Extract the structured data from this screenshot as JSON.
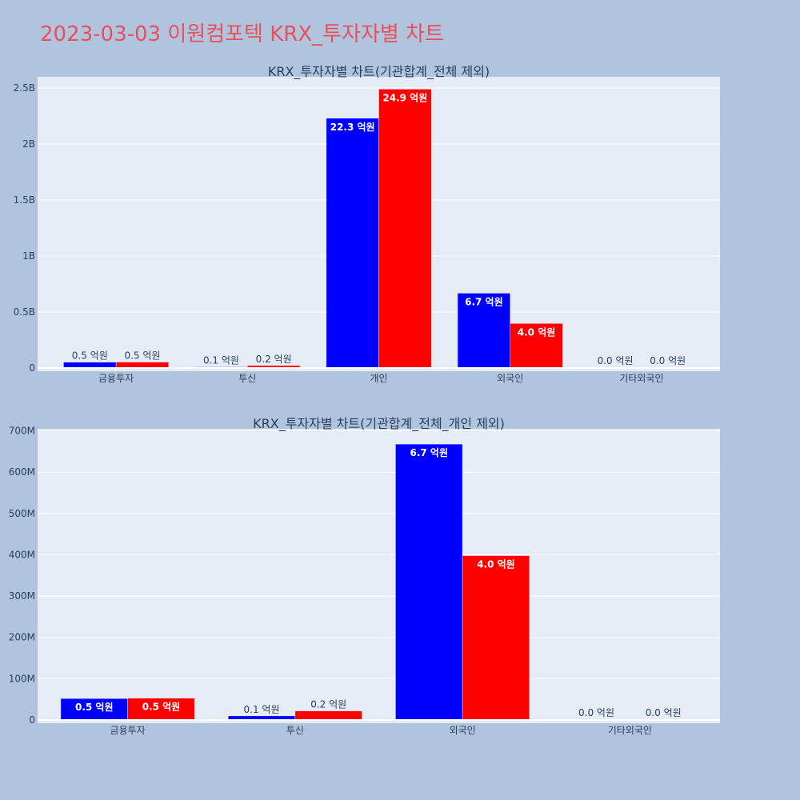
{
  "title": "2023-03-03 이원컴포텍 KRX_투자자별 차트",
  "colors": {
    "buy": "#0000ff",
    "sell": "#ff0000",
    "plot_bg": "#e5ecf6",
    "grid": "#ffffff",
    "tick_text": "#2a3f5f"
  },
  "chart_data": [
    {
      "type": "bar",
      "title": "KRX_투자자별 차트(기관합계_전체 제외)",
      "categories": [
        "금융투자",
        "투신",
        "개인",
        "외국인",
        "기타외국인"
      ],
      "series": [
        {
          "color": "#0000ff",
          "values": [
            52000000,
            10000000,
            2230000000,
            668000000,
            1000000
          ],
          "labels": [
            "0.5 억원",
            "0.1 억원",
            "22.3 억원",
            "6.7 억원",
            "0.0 억원"
          ]
        },
        {
          "color": "#ff0000",
          "values": [
            53000000,
            22000000,
            2490000000,
            398000000,
            1000000
          ],
          "labels": [
            "0.5 억원",
            "0.2 억원",
            "24.9 억원",
            "4.0 억원",
            "0.0 억원"
          ]
        }
      ],
      "ylim": [
        0,
        2600000000
      ],
      "yticks": [
        0,
        500000000,
        1000000000,
        1500000000,
        2000000000,
        2500000000
      ],
      "ytick_labels": [
        "0",
        "0.5B",
        "1B",
        "1.5B",
        "2B",
        "2.5B"
      ],
      "grid": true
    },
    {
      "type": "bar",
      "title": "KRX_투자자별 차트(기관합계_전체_개인 제외)",
      "categories": [
        "금융투자",
        "투신",
        "외국인",
        "기타외국인"
      ],
      "series": [
        {
          "color": "#0000ff",
          "values": [
            52000000,
            10000000,
            668000000,
            1000000
          ],
          "labels": [
            "0.5 억원",
            "0.1 억원",
            "6.7 억원",
            "0.0 억원"
          ]
        },
        {
          "color": "#ff0000",
          "values": [
            53000000,
            22000000,
            398000000,
            1000000
          ],
          "labels": [
            "0.5 억원",
            "0.2 억원",
            "4.0 억원",
            "0.0 억원"
          ]
        }
      ],
      "ylim": [
        0,
        705000000
      ],
      "yticks": [
        0,
        100000000,
        200000000,
        300000000,
        400000000,
        500000000,
        600000000,
        700000000
      ],
      "ytick_labels": [
        "0",
        "100M",
        "200M",
        "300M",
        "400M",
        "500M",
        "600M",
        "700M"
      ],
      "grid": true
    }
  ]
}
